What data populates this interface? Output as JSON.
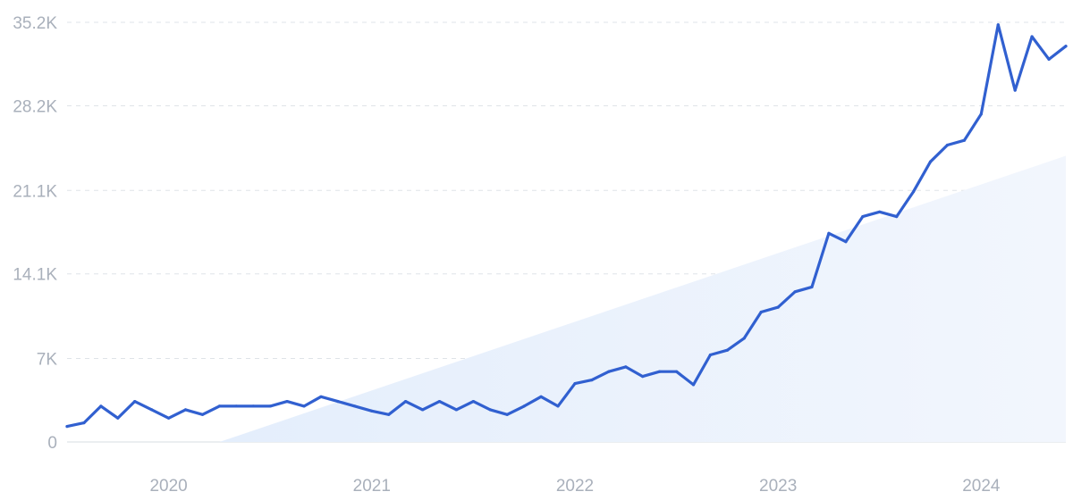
{
  "chart_data": {
    "type": "line",
    "title": "",
    "xlabel": "",
    "ylabel": "",
    "colors": {
      "line": "#3160d0",
      "trend_fill_start": "#e4eefc",
      "trend_fill_end": "#f2f6fd",
      "grid": "#dfe3e8",
      "tick_text": "#a9b0bb"
    },
    "grid": true,
    "legend": "none",
    "ylim": [
      0,
      35200
    ],
    "y_ticks": [
      {
        "value": 0,
        "label": "0"
      },
      {
        "value": 7000,
        "label": "7K"
      },
      {
        "value": 14100,
        "label": "14.1K"
      },
      {
        "value": 21100,
        "label": "21.1K"
      },
      {
        "value": 28200,
        "label": "28.2K"
      },
      {
        "value": 35200,
        "label": "35.2K"
      }
    ],
    "xlim": [
      "2019-07",
      "2024-06"
    ],
    "x_ticks": [
      {
        "value": "2020-01",
        "label": "2020"
      },
      {
        "value": "2021-01",
        "label": "2021"
      },
      {
        "value": "2022-01",
        "label": "2022"
      },
      {
        "value": "2023-01",
        "label": "2023"
      },
      {
        "value": "2024-01",
        "label": "2024"
      }
    ],
    "series": [
      {
        "x": [
          "2019-07",
          "2019-08",
          "2019-09",
          "2019-10",
          "2019-11",
          "2019-12",
          "2020-01",
          "2020-02",
          "2020-03",
          "2020-04",
          "2020-05",
          "2020-06",
          "2020-07",
          "2020-08",
          "2020-09",
          "2020-10",
          "2020-11",
          "2020-12",
          "2021-01",
          "2021-02",
          "2021-03",
          "2021-04",
          "2021-05",
          "2021-06",
          "2021-07",
          "2021-08",
          "2021-09",
          "2021-10",
          "2021-11",
          "2021-12",
          "2022-01",
          "2022-02",
          "2022-03",
          "2022-04",
          "2022-05",
          "2022-06",
          "2022-07",
          "2022-08",
          "2022-09",
          "2022-10",
          "2022-11",
          "2022-12",
          "2023-01",
          "2023-02",
          "2023-03",
          "2023-04",
          "2023-05",
          "2023-06",
          "2023-07",
          "2023-08",
          "2023-09",
          "2023-10",
          "2023-11",
          "2023-12",
          "2024-01",
          "2024-02",
          "2024-03",
          "2024-04",
          "2024-05",
          "2024-06"
        ],
        "y": [
          1300,
          1600,
          3000,
          2000,
          3400,
          2700,
          2000,
          2700,
          2300,
          3000,
          3000,
          3000,
          3000,
          3400,
          3000,
          3800,
          3400,
          3000,
          2600,
          2300,
          3400,
          2700,
          3400,
          2700,
          3400,
          2700,
          2300,
          3000,
          3800,
          3000,
          4900,
          5200,
          5900,
          6300,
          5500,
          5900,
          5900,
          4800,
          7300,
          7700,
          8700,
          10900,
          11300,
          12600,
          13000,
          17500,
          16800,
          18900,
          19300,
          18900,
          21000,
          23500,
          24900,
          25300,
          27500,
          35000,
          29500,
          34000,
          32100,
          33200
        ]
      }
    ],
    "trend_band": {
      "x": [
        "2020-04",
        "2024-06"
      ],
      "y": [
        0,
        24000
      ]
    }
  }
}
